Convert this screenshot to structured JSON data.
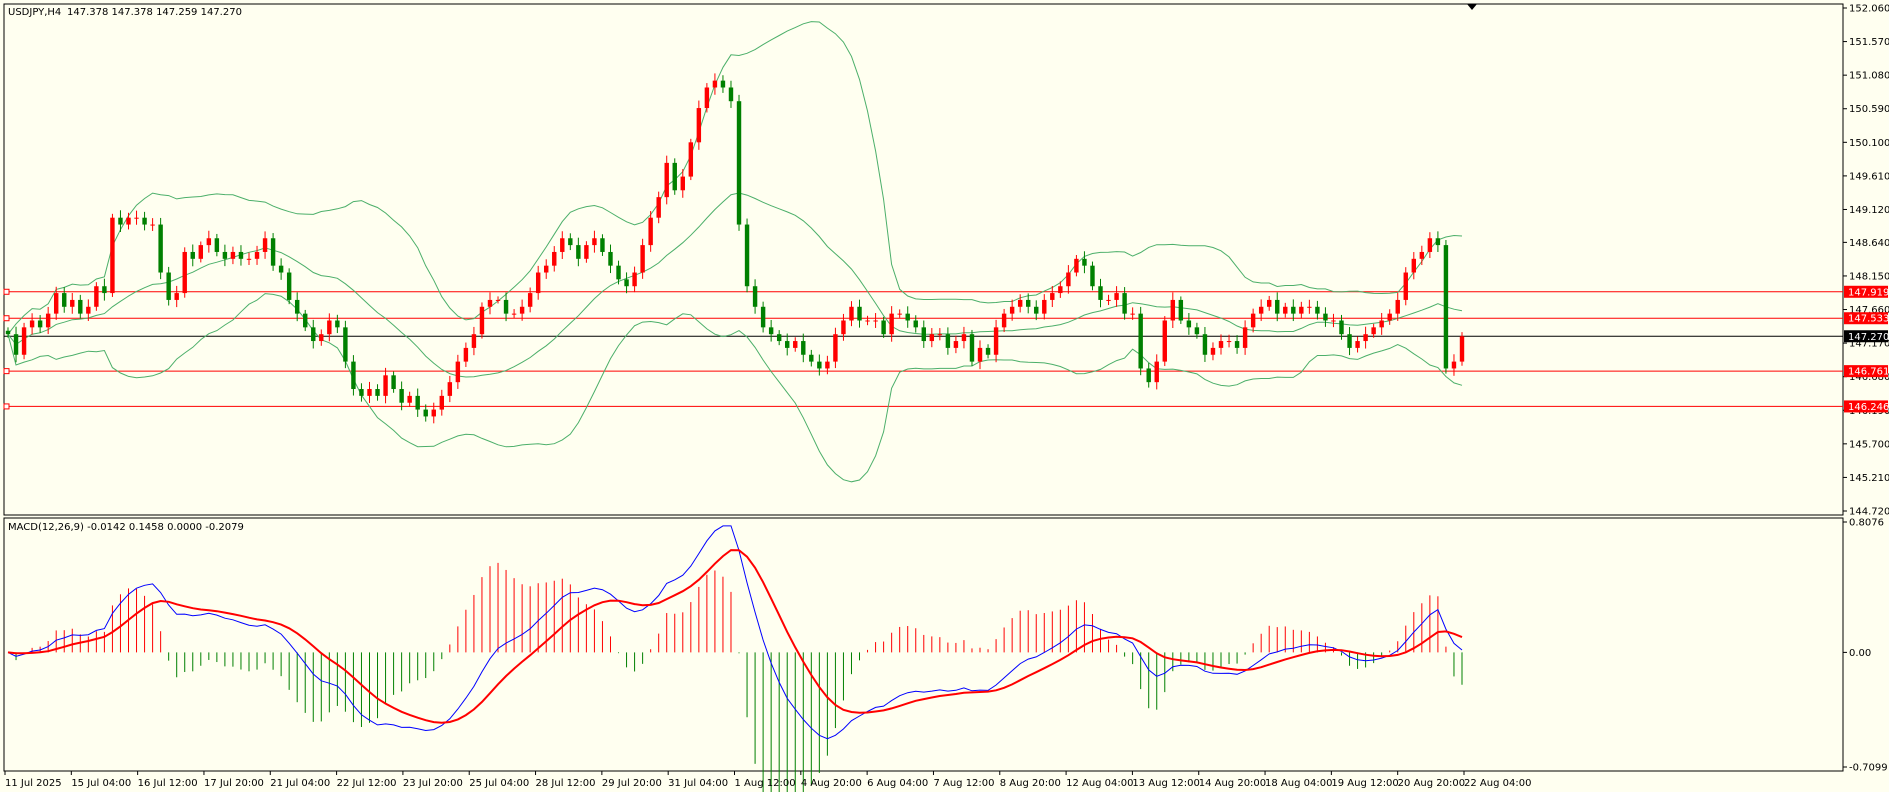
{
  "chart_data": [
    {
      "type": "candlestick",
      "title": "USDJPY,H4",
      "ohlc_header": "147.378 147.378 147.259 147.270",
      "ylim": [
        144.72,
        152.06
      ],
      "y_ticks": [
        "152.060",
        "151.570",
        "151.080",
        "150.590",
        "150.100",
        "149.610",
        "149.120",
        "148.640",
        "148.150",
        "147.660",
        "147.170",
        "146.680",
        "146.190",
        "145.700",
        "145.210",
        "144.720"
      ],
      "x_ticks": [
        "11 Jul 2025",
        "15 Jul 04:00",
        "16 Jul 12:00",
        "17 Jul 20:00",
        "21 Jul 04:00",
        "22 Jul 12:00",
        "23 Jul 20:00",
        "25 Jul 04:00",
        "28 Jul 12:00",
        "29 Jul 20:00",
        "31 Jul 04:00",
        "1 Aug 12:00",
        "4 Aug 20:00",
        "6 Aug 04:00",
        "7 Aug 12:00",
        "8 Aug 20:00",
        "12 Aug 04:00",
        "13 Aug 12:00",
        "14 Aug 20:00",
        "18 Aug 04:00",
        "19 Aug 12:00",
        "20 Aug 20:00",
        "22 Aug 04:00"
      ],
      "current_price": 147.27,
      "current_price_label": "147.270",
      "horizontal_levels": [
        {
          "price": 147.919,
          "label": "147.919"
        },
        {
          "price": 147.533,
          "label": "147.533"
        },
        {
          "price": 146.761,
          "label": "146.761"
        },
        {
          "price": 146.246,
          "label": "146.246"
        }
      ],
      "close": [
        147.3,
        147.0,
        147.4,
        147.5,
        147.4,
        147.6,
        147.9,
        147.7,
        147.8,
        147.6,
        147.7,
        148.0,
        147.9,
        149.0,
        148.9,
        149.0,
        149.0,
        148.9,
        148.9,
        148.2,
        147.8,
        147.9,
        148.5,
        148.4,
        148.6,
        148.7,
        148.5,
        148.4,
        148.5,
        148.4,
        148.4,
        148.5,
        148.7,
        148.3,
        148.2,
        147.8,
        147.6,
        147.4,
        147.2,
        147.3,
        147.5,
        147.4,
        146.9,
        146.5,
        146.4,
        146.5,
        146.4,
        146.7,
        146.5,
        146.3,
        146.4,
        146.2,
        146.1,
        146.2,
        146.4,
        146.6,
        146.9,
        147.1,
        147.3,
        147.7,
        147.8,
        147.8,
        147.6,
        147.6,
        147.7,
        147.9,
        148.2,
        148.3,
        148.5,
        148.7,
        148.6,
        148.4,
        148.6,
        148.7,
        148.5,
        148.3,
        148.1,
        148.0,
        148.2,
        148.6,
        149.0,
        149.3,
        149.8,
        149.4,
        149.6,
        150.1,
        150.6,
        150.9,
        151.0,
        150.9,
        150.7,
        148.9,
        148.0,
        147.7,
        147.4,
        147.3,
        147.2,
        147.1,
        147.2,
        147.0,
        146.9,
        146.8,
        146.9,
        147.3,
        147.5,
        147.7,
        147.5,
        147.5,
        147.5,
        147.3,
        147.6,
        147.6,
        147.5,
        147.4,
        147.2,
        147.3,
        147.3,
        147.1,
        147.2,
        147.3,
        146.9,
        147.1,
        147.0,
        147.4,
        147.6,
        147.7,
        147.8,
        147.7,
        147.6,
        147.8,
        147.9,
        148.0,
        148.2,
        148.4,
        148.3,
        148.0,
        147.8,
        147.8,
        147.9,
        147.6,
        147.6,
        146.8,
        146.6,
        146.9,
        147.5,
        147.8,
        147.5,
        147.4,
        147.3,
        147.0,
        147.1,
        147.2,
        147.2,
        147.1,
        147.4,
        147.6,
        147.7,
        147.8,
        147.6,
        147.7,
        147.6,
        147.7,
        147.7,
        147.6,
        147.5,
        147.5,
        147.3,
        147.1,
        147.2,
        147.3,
        147.4,
        147.5,
        147.6,
        147.8,
        148.2,
        148.4,
        148.5,
        148.7,
        148.6,
        146.8,
        146.9,
        147.27
      ],
      "bollinger": {
        "period": 20,
        "deviations": 2
      },
      "color_up": "#ff0000",
      "color_down": "#008000",
      "band_color": "#4caf6a"
    },
    {
      "type": "macd",
      "label": "MACD(12,26,9) -0.0142 0.1458 0.0000 -0.2079",
      "ylim": [
        -0.7099,
        0.8076
      ],
      "y_ticks": [
        "0.8076",
        "0.00",
        "-0.7099"
      ],
      "macd_color": "#0000ff",
      "signal_color": "#ff0000"
    }
  ]
}
